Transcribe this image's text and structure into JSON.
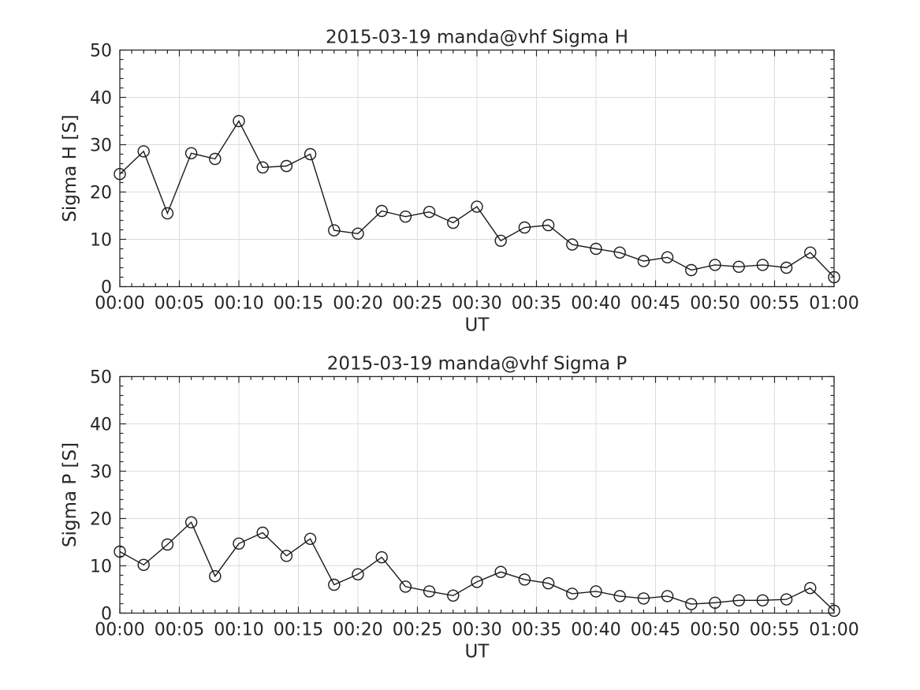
{
  "figure": {
    "background": "#ffffff",
    "text_color": "#262626",
    "axis_color": "#262626",
    "grid_color": "#dcdcdc",
    "line_color": "#1a1a1a",
    "marker": "open-circle"
  },
  "chart_data": [
    {
      "type": "line",
      "title": "2015-03-19  manda@vhf Sigma H",
      "xlabel": "UT",
      "ylabel": "Sigma H [S]",
      "xlim_minutes": [
        0,
        60
      ],
      "ylim": [
        0,
        50
      ],
      "grid": true,
      "legend": null,
      "marker": "open-circle",
      "x_minutes": [
        0,
        2,
        4,
        6,
        8,
        10,
        12,
        14,
        16,
        18,
        20,
        22,
        24,
        26,
        28,
        30,
        32,
        34,
        36,
        38,
        40,
        42,
        44,
        46,
        48,
        50,
        52,
        54,
        56,
        58,
        60
      ],
      "values": [
        23.8,
        28.6,
        15.5,
        28.2,
        27.0,
        35.0,
        25.2,
        25.5,
        28.0,
        11.9,
        11.2,
        16.0,
        14.8,
        15.8,
        13.5,
        16.9,
        9.7,
        12.5,
        13.0,
        8.9,
        8.0,
        7.2,
        5.4,
        6.2,
        3.5,
        4.6,
        4.2,
        4.6,
        4.0,
        7.2,
        2.0
      ],
      "x_major_tick_minutes": [
        0,
        5,
        10,
        15,
        20,
        25,
        30,
        35,
        40,
        45,
        50,
        55,
        60
      ],
      "x_tick_labels": [
        "00:00",
        "00:05",
        "00:10",
        "00:15",
        "00:20",
        "00:25",
        "00:30",
        "00:35",
        "00:40",
        "00:45",
        "00:50",
        "00:55",
        "01:00"
      ],
      "x_minor_step_minutes": 1,
      "y_major_ticks": [
        0,
        10,
        20,
        30,
        40,
        50
      ],
      "y_minor_step": 2
    },
    {
      "type": "line",
      "title": "2015-03-19  manda@vhf Sigma P",
      "xlabel": "UT",
      "ylabel": "Sigma P [S]",
      "xlim_minutes": [
        0,
        60
      ],
      "ylim": [
        0,
        50
      ],
      "grid": true,
      "legend": null,
      "marker": "open-circle",
      "x_minutes": [
        0,
        2,
        4,
        6,
        8,
        10,
        12,
        14,
        16,
        18,
        20,
        22,
        24,
        26,
        28,
        30,
        32,
        34,
        36,
        38,
        40,
        42,
        44,
        46,
        48,
        50,
        52,
        54,
        56,
        58,
        60
      ],
      "values": [
        13.0,
        10.2,
        14.5,
        19.2,
        7.8,
        14.7,
        17.0,
        12.1,
        15.7,
        6.0,
        8.2,
        11.8,
        5.6,
        4.6,
        3.7,
        6.6,
        8.7,
        7.1,
        6.3,
        4.1,
        4.6,
        3.6,
        3.1,
        3.6,
        1.9,
        2.2,
        2.7,
        2.7,
        2.9,
        5.3,
        0.5
      ],
      "x_major_tick_minutes": [
        0,
        5,
        10,
        15,
        20,
        25,
        30,
        35,
        40,
        45,
        50,
        55,
        60
      ],
      "x_tick_labels": [
        "00:00",
        "00:05",
        "00:10",
        "00:15",
        "00:20",
        "00:25",
        "00:30",
        "00:35",
        "00:40",
        "00:45",
        "00:50",
        "00:55",
        "01:00"
      ],
      "x_minor_step_minutes": 1,
      "y_major_ticks": [
        0,
        10,
        20,
        30,
        40,
        50
      ],
      "y_minor_step": 2
    }
  ]
}
